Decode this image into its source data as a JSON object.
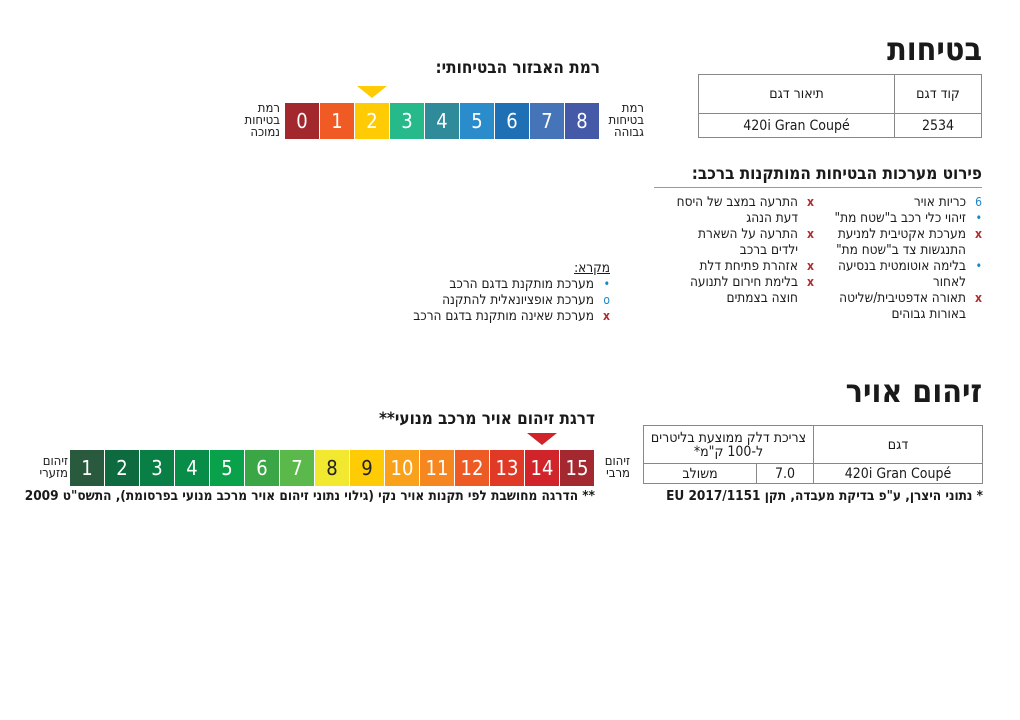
{
  "safety": {
    "title": "בטיחות",
    "table": {
      "headers": [
        "קוד דגם",
        "תיאור דגם"
      ],
      "row": [
        "2534",
        "420i Gran Coupé"
      ]
    },
    "level_title": "רמת האבזור הבטיחותי:",
    "scale": [
      "0",
      "1",
      "2",
      "3",
      "4",
      "5",
      "6",
      "7",
      "8"
    ],
    "scale_colors": [
      "#a3282d",
      "#f05a24",
      "#ffcb05",
      "#26b98a",
      "#2f8a9a",
      "#2b8ccc",
      "#1f6fb5",
      "#4674b8",
      "#4459a8"
    ],
    "selected_level": 2,
    "low_label": "רמת בטיחות נמוכה",
    "high_label": "רמת בטיחות גבוהה",
    "systems_title": "פירוט מערכות הבטיחות המותקנות ברכב:",
    "col1": [
      {
        "mark": "6",
        "text": "כריות אויר"
      },
      {
        "mark": "•",
        "text": "זיהוי כלי רכב ב\"שטח מת\""
      },
      {
        "mark": "x",
        "text": "מערכת אקטיבית למניעת התנגשות צד ב\"שטח מת\""
      },
      {
        "mark": "•",
        "text": "בלימה אוטומטית בנסיעה לאחור"
      },
      {
        "mark": "x",
        "text": "תאורה אדפטיבית/שליטה באורות גבוהים"
      }
    ],
    "col2": [
      {
        "mark": "x",
        "text": "התרעה במצב של היסח דעת הנהג"
      },
      {
        "mark": "x",
        "text": "התרעה על השארת ילדים ברכב"
      },
      {
        "mark": "x",
        "text": "אזהרת פתיחת דלת"
      },
      {
        "mark": "x",
        "text": "בלימת חירום לתנועה חוצה בצמתים"
      }
    ],
    "legend": {
      "title": "מקרא:",
      "items": [
        {
          "mark": "•",
          "text": "מערכת מותקנת בדגם הרכב"
        },
        {
          "mark": "o",
          "text": "מערכת אופציונאלית להתקנה"
        },
        {
          "mark": "x",
          "text": "מערכת שאינה מותקנת בדגם הרכב"
        }
      ]
    }
  },
  "pollution": {
    "title": "זיהום אויר",
    "table": {
      "headers": [
        "דגם",
        "צריכת דלק ממוצעת בליטרים ל-100 ק\"מ*"
      ],
      "row": [
        "420i Gran Coupé",
        "7.0",
        "משולב"
      ]
    },
    "footnote": "** הדרגה מחושבת לפי תקנות אויר נקי (גילוי נתוני זיהום אויר מרכב מנועי בפרסומת), התשס\"ט 2009",
    "scale_title": "דרגת זיהום אויר מרכב מנועי**",
    "scale": [
      "1",
      "2",
      "3",
      "4",
      "5",
      "6",
      "7",
      "8",
      "9",
      "10",
      "11",
      "12",
      "13",
      "14",
      "15"
    ],
    "scale_colors": [
      "#2a5a3e",
      "#0e6b3f",
      "#0a7f45",
      "#078d47",
      "#0aa14b",
      "#3aa645",
      "#5ab94a",
      "#f2e830",
      "#ffcb05",
      "#f9a11b",
      "#f58620",
      "#ee5a24",
      "#e03a26",
      "#d1232a",
      "#a4282f"
    ],
    "selected_level": 14,
    "min_label": "זיהום מזערי",
    "max_label": "זיהום מרבי",
    "footnote1": "* נתוני היצרן, ע\"פ בדיקת מעבדה, תקן EU 2017/1151"
  }
}
